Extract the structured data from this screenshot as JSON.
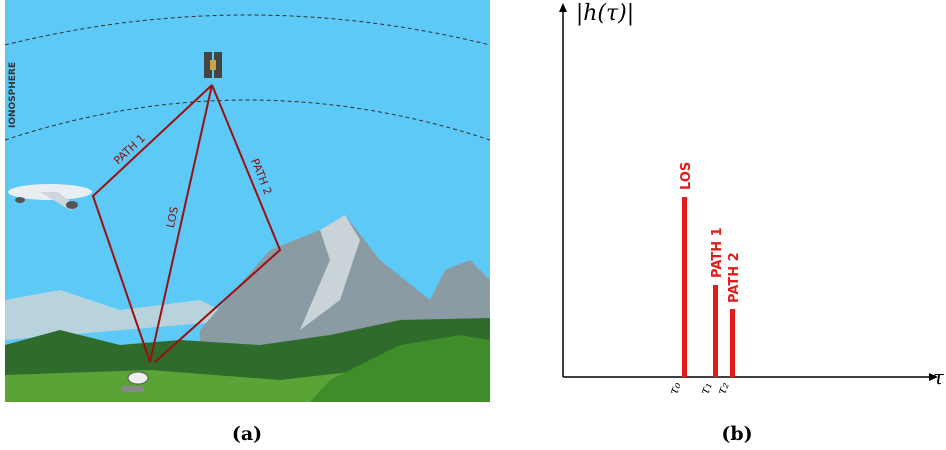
{
  "panel_a": {
    "ionosphere_label": "IONOSPHERE",
    "path_labels": [
      "PATH 1",
      "LOS",
      "PATH 2"
    ],
    "caption": "(a)"
  },
  "panel_b": {
    "y_axis_label": "|h(τ)|",
    "x_axis_label": "τ",
    "impulse_labels": [
      "LOS",
      "PATH 1",
      "PATH 2"
    ],
    "tick_labels": [
      "τ₀",
      "τ₁",
      "τ₂"
    ],
    "caption": "(b)"
  }
}
